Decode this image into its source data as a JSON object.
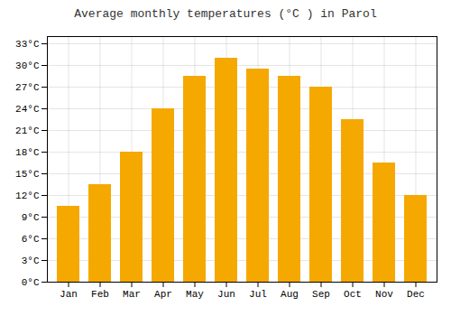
{
  "chart_data": {
    "type": "bar",
    "title": "Average monthly temperatures (°C ) in Parol",
    "categories": [
      "Jan",
      "Feb",
      "Mar",
      "Apr",
      "May",
      "Jun",
      "Jul",
      "Aug",
      "Sep",
      "Oct",
      "Nov",
      "Dec"
    ],
    "values": [
      10.5,
      13.5,
      18.0,
      24.0,
      28.5,
      31.0,
      29.5,
      28.5,
      27.0,
      22.5,
      16.5,
      12.0
    ],
    "color": "#F5A800",
    "ylim": [
      0,
      34
    ],
    "yticks": [
      {
        "value": 0,
        "label": "0°C"
      },
      {
        "value": 3,
        "label": "3°C"
      },
      {
        "value": 6,
        "label": "6°C"
      },
      {
        "value": 9,
        "label": "9°C"
      },
      {
        "value": 12,
        "label": "12°C"
      },
      {
        "value": 15,
        "label": "15°C"
      },
      {
        "value": 18,
        "label": "18°C"
      },
      {
        "value": 21,
        "label": "21°C"
      },
      {
        "value": 24,
        "label": "24°C"
      },
      {
        "value": 27,
        "label": "27°C"
      },
      {
        "value": 30,
        "label": "30°C"
      },
      {
        "value": 33,
        "label": "33°C"
      }
    ],
    "grid": true
  }
}
